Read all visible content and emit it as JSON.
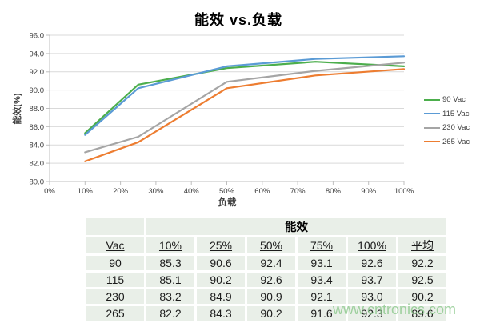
{
  "chart_data": {
    "type": "line",
    "title": "能效 vs.负载",
    "xlabel": "负载",
    "ylabel": "能效(%)",
    "x": [
      10,
      25,
      50,
      75,
      100
    ],
    "xlim": [
      0,
      100
    ],
    "ylim": [
      80,
      96
    ],
    "xticks": [
      0,
      10,
      20,
      30,
      40,
      50,
      60,
      70,
      80,
      90,
      100
    ],
    "yticks": [
      96,
      94,
      92,
      90,
      88,
      86,
      84,
      82,
      80
    ],
    "grid": "horizontal",
    "legend_position": "right",
    "colors": {
      "gridline": "#d9d9d9",
      "axis": "#bfbfbf",
      "tick_text": "#404040"
    },
    "series": [
      {
        "name": "90 Vac",
        "color": "#4CAE4C",
        "values": [
          85.3,
          90.6,
          92.4,
          93.1,
          92.6
        ]
      },
      {
        "name": "115 Vac",
        "color": "#5B9BD5",
        "values": [
          85.1,
          90.2,
          92.6,
          93.4,
          93.7
        ]
      },
      {
        "name": "230 Vac",
        "color": "#A5A5A5",
        "values": [
          83.2,
          84.9,
          90.9,
          92.1,
          93.0
        ]
      },
      {
        "name": "265 Vac",
        "color": "#ED7D31",
        "values": [
          82.2,
          84.3,
          90.2,
          91.6,
          92.3
        ]
      }
    ]
  },
  "table": {
    "merged_header": "能效",
    "columns": [
      "Vac",
      "10%",
      "25%",
      "50%",
      "75%",
      "100%",
      "平均"
    ],
    "rows": [
      [
        "90",
        "85.3",
        "90.6",
        "92.4",
        "93.1",
        "92.6",
        "92.2"
      ],
      [
        "115",
        "85.1",
        "90.2",
        "92.6",
        "93.4",
        "93.7",
        "92.5"
      ],
      [
        "230",
        "83.2",
        "84.9",
        "90.9",
        "92.1",
        "93.0",
        "90.2"
      ],
      [
        "265",
        "82.2",
        "84.3",
        "90.2",
        "91.6",
        "92.3",
        "89.6"
      ]
    ],
    "cell_background": "#e9efe8"
  },
  "watermark": "www.cntronics.com"
}
